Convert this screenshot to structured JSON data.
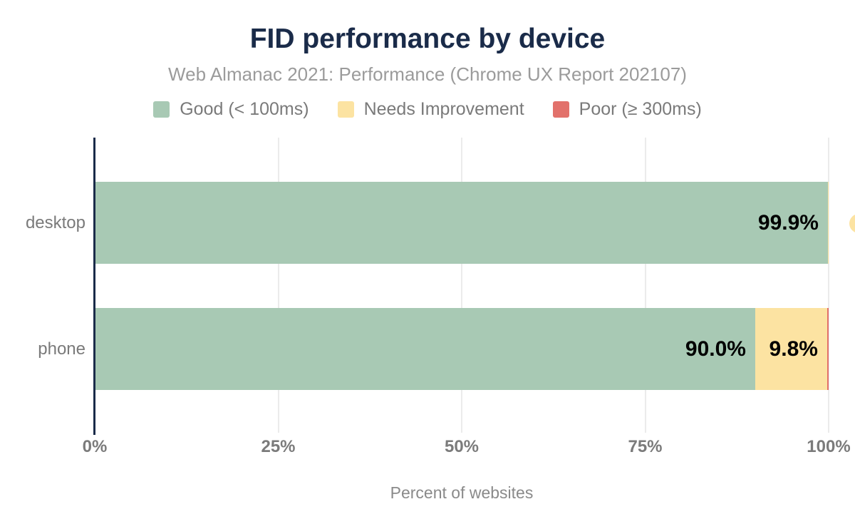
{
  "chart_data": {
    "type": "bar",
    "orientation": "horizontal",
    "stacked": true,
    "title": "FID performance by device",
    "subtitle": "Web Almanac 2021: Performance (Chrome UX Report 202107)",
    "xlabel": "Percent of websites",
    "categories": [
      "desktop",
      "phone"
    ],
    "series": [
      {
        "name": "Good (< 100ms)",
        "color": "#a8c9b4",
        "values": [
          99.9,
          90.0
        ],
        "labels": [
          "99.9%",
          "90.0%"
        ]
      },
      {
        "name": "Needs Improvement",
        "color": "#fce3a2",
        "values": [
          0.1,
          9.8
        ],
        "labels": [
          null,
          "9.8%"
        ]
      },
      {
        "name": "Poor (≥ 300ms)",
        "color": "#e2716b",
        "values": [
          0.0,
          0.2
        ],
        "labels": [
          null,
          null
        ]
      }
    ],
    "x_ticks": [
      {
        "label": "0%",
        "value": 0
      },
      {
        "label": "25%",
        "value": 25
      },
      {
        "label": "50%",
        "value": 50
      },
      {
        "label": "75%",
        "value": 75
      },
      {
        "label": "100%",
        "value": 100
      }
    ],
    "xlim": [
      0,
      100
    ],
    "grid": "vertical",
    "legend_position": "top",
    "clipped_overflow_label": {
      "series": "Needs Improvement",
      "category": "desktop",
      "color": "#fce3a2"
    }
  },
  "colors": {
    "title": "#1a2b49",
    "axis_line": "#1a2b49",
    "gridline": "#ebebeb",
    "subtitle_text": "#9b9b9b",
    "axis_text": "#7a7a7a",
    "bar_label_text": "#000000",
    "background": "#ffffff"
  }
}
